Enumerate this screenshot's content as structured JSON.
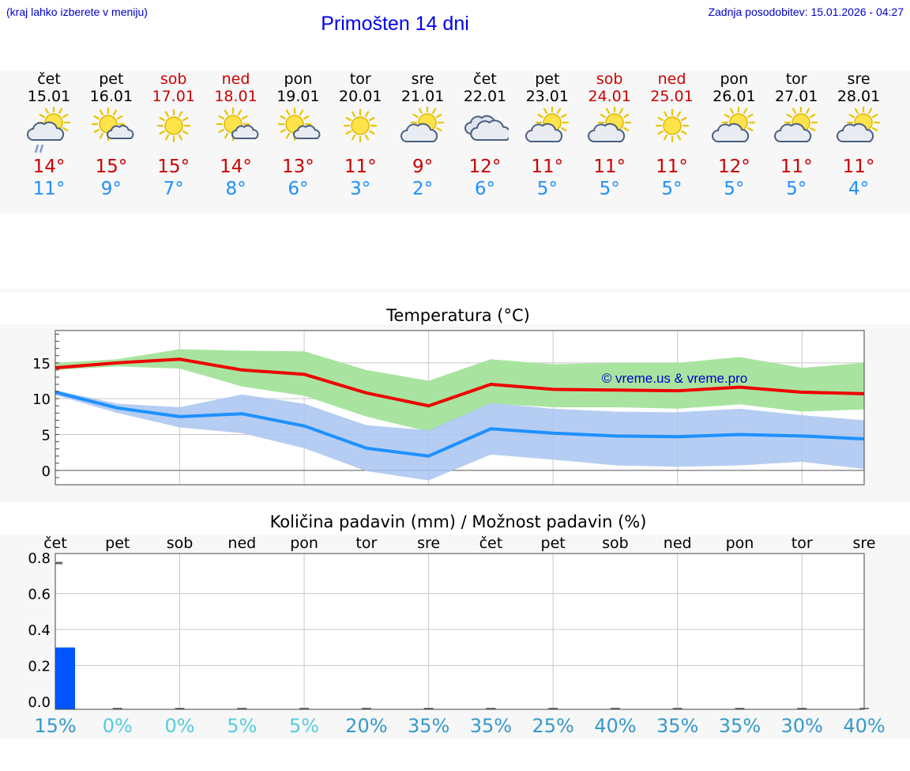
{
  "header": {
    "left_note": "(kraj lahko izberete v meniju)",
    "title": "Primošten 14 dni",
    "updated": "Zadnja posodobitev: 15.01.2026 - 04:27"
  },
  "days": [
    {
      "name": "čet",
      "date": "15.01",
      "weekend": false,
      "icon": "sun-cloud-rain-icon",
      "tmax": "14°",
      "tmin": "11°"
    },
    {
      "name": "pet",
      "date": "16.01",
      "weekend": false,
      "icon": "sun-small-cloud-icon",
      "tmax": "15°",
      "tmin": "9°"
    },
    {
      "name": "sob",
      "date": "17.01",
      "weekend": true,
      "icon": "sun-icon",
      "tmax": "15°",
      "tmin": "7°"
    },
    {
      "name": "ned",
      "date": "18.01",
      "weekend": true,
      "icon": "sun-small-cloud-icon",
      "tmax": "14°",
      "tmin": "8°"
    },
    {
      "name": "pon",
      "date": "19.01",
      "weekend": false,
      "icon": "sun-small-cloud-icon",
      "tmax": "13°",
      "tmin": "6°"
    },
    {
      "name": "tor",
      "date": "20.01",
      "weekend": false,
      "icon": "sun-icon",
      "tmax": "11°",
      "tmin": "3°"
    },
    {
      "name": "sre",
      "date": "21.01",
      "weekend": false,
      "icon": "sun-cloud-icon",
      "tmax": "9°",
      "tmin": "2°"
    },
    {
      "name": "čet",
      "date": "22.01",
      "weekend": false,
      "icon": "cloudy-icon",
      "tmax": "12°",
      "tmin": "6°"
    },
    {
      "name": "pet",
      "date": "23.01",
      "weekend": false,
      "icon": "sun-cloud-icon",
      "tmax": "11°",
      "tmin": "5°"
    },
    {
      "name": "sob",
      "date": "24.01",
      "weekend": true,
      "icon": "sun-cloud-icon",
      "tmax": "11°",
      "tmin": "5°"
    },
    {
      "name": "ned",
      "date": "25.01",
      "weekend": true,
      "icon": "sun-icon",
      "tmax": "11°",
      "tmin": "5°"
    },
    {
      "name": "pon",
      "date": "26.01",
      "weekend": false,
      "icon": "sun-cloud-icon",
      "tmax": "12°",
      "tmin": "5°"
    },
    {
      "name": "tor",
      "date": "27.01",
      "weekend": false,
      "icon": "sun-cloud-icon",
      "tmax": "11°",
      "tmin": "5°"
    },
    {
      "name": "sre",
      "date": "28.01",
      "weekend": false,
      "icon": "sun-cloud-icon",
      "tmax": "11°",
      "tmin": "4°"
    }
  ],
  "colors": {
    "max": "#ee0000",
    "min": "#1e90ff",
    "max_band": "#a8e4a0",
    "min_band": "#a8c4f0",
    "bar": "#0055ff",
    "grid": "#c8c8c8"
  },
  "chart_data": [
    {
      "type": "line",
      "title": "Temperatura (°C)",
      "watermark": "© vreme.us & vreme.pro",
      "ylim": [
        -2,
        19.5
      ],
      "yticks": [
        0,
        5,
        10,
        15
      ],
      "series": [
        {
          "name": "max",
          "values": [
            14.3,
            15.0,
            15.5,
            14.0,
            13.4,
            10.8,
            9.0,
            12.0,
            11.3,
            11.2,
            11.1,
            11.6,
            10.9,
            10.7
          ]
        },
        {
          "name": "min",
          "values": [
            10.9,
            8.7,
            7.5,
            7.9,
            6.2,
            3.1,
            2.0,
            5.8,
            5.2,
            4.8,
            4.7,
            5.0,
            4.8,
            4.4
          ]
        }
      ],
      "bands": [
        {
          "name": "max_range",
          "upper": [
            15.0,
            15.5,
            16.9,
            16.7,
            16.6,
            14.0,
            12.5,
            15.5,
            14.8,
            15.0,
            15.0,
            15.8,
            14.3,
            15.0
          ],
          "lower": [
            14.0,
            14.5,
            14.2,
            11.7,
            10.4,
            7.5,
            5.4,
            9.3,
            8.8,
            8.8,
            8.6,
            9.2,
            8.2,
            8.5
          ]
        },
        {
          "name": "min_range",
          "upper": [
            11.2,
            9.3,
            8.8,
            10.6,
            9.3,
            6.3,
            5.6,
            9.4,
            8.6,
            8.2,
            8.1,
            8.6,
            7.7,
            7.0
          ],
          "lower": [
            10.5,
            8.0,
            6.0,
            5.2,
            3.1,
            -0.1,
            -1.4,
            2.2,
            1.5,
            0.7,
            0.5,
            0.7,
            1.2,
            0.2
          ]
        }
      ]
    },
    {
      "type": "bar",
      "title": "Količina padavin (mm) / Možnost padavin (%)",
      "categories": [
        "čet",
        "pet",
        "sob",
        "ned",
        "pon",
        "tor",
        "sre",
        "čet",
        "pet",
        "sob",
        "ned",
        "pon",
        "tor",
        "sre"
      ],
      "values": [
        0.3,
        0,
        0,
        0,
        0,
        0,
        0,
        0,
        0,
        0,
        0,
        0,
        0,
        0
      ],
      "ylim": [
        -0.05,
        0.82
      ],
      "yticks": [
        "0.0",
        "0.2",
        "0.4",
        "0.6",
        "0.8"
      ],
      "probability": [
        "15%",
        "0%",
        "0%",
        "5%",
        "5%",
        "20%",
        "35%",
        "35%",
        "25%",
        "40%",
        "35%",
        "35%",
        "30%",
        "40%"
      ],
      "probability_colors": [
        "#3399cc",
        "#55ccdd",
        "#55ccdd",
        "#55ccdd",
        "#55ccdd",
        "#3399cc",
        "#3399cc",
        "#3399cc",
        "#3399cc",
        "#3399cc",
        "#3399cc",
        "#3399cc",
        "#3399cc",
        "#3399cc"
      ]
    }
  ]
}
